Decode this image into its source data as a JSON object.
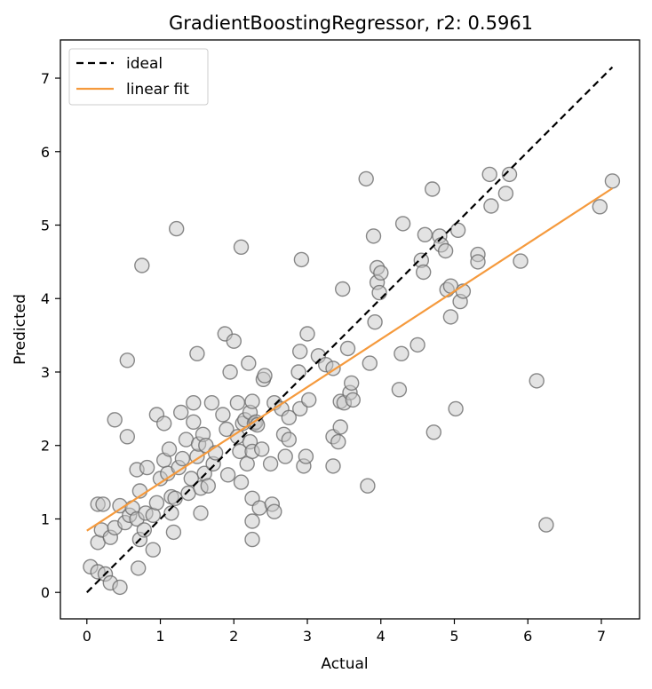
{
  "chart_data": {
    "type": "scatter",
    "title": "GradientBoostingRegressor, r2: 0.5961",
    "xlabel": "Actual",
    "ylabel": "Predicted",
    "xlim": [
      -0.36,
      7.52
    ],
    "ylim": [
      -0.36,
      7.52
    ],
    "xticks": [
      0,
      1,
      2,
      3,
      4,
      5,
      6,
      7
    ],
    "yticks": [
      0,
      1,
      2,
      3,
      4,
      5,
      6,
      7
    ],
    "xtick_labels": [
      "0",
      "1",
      "2",
      "3",
      "4",
      "5",
      "6",
      "7"
    ],
    "ytick_labels": [
      "0",
      "1",
      "2",
      "3",
      "4",
      "5",
      "6",
      "7"
    ],
    "grid": false,
    "legend_position": "top-left",
    "legend": [
      {
        "key": "ideal",
        "label": "ideal"
      },
      {
        "key": "linear_fit",
        "label": "linear fit"
      }
    ],
    "ideal_line": {
      "x": [
        0,
        7.15
      ],
      "y": [
        0,
        7.15
      ],
      "color": "#000000",
      "style": "dashed"
    },
    "linear_fit": {
      "x": [
        0,
        7.15
      ],
      "y": [
        0.84,
        5.5
      ],
      "color": "#f59a3d"
    },
    "point_color": "#c8c8c8",
    "point_edge_color": "#6b6b6b",
    "points": [
      [
        0.05,
        0.35
      ],
      [
        0.15,
        0.28
      ],
      [
        0.25,
        0.25
      ],
      [
        0.32,
        0.13
      ],
      [
        0.45,
        0.07
      ],
      [
        0.15,
        0.68
      ],
      [
        0.2,
        0.85
      ],
      [
        0.15,
        1.2
      ],
      [
        0.22,
        1.2
      ],
      [
        0.32,
        0.75
      ],
      [
        0.38,
        0.88
      ],
      [
        0.45,
        1.18
      ],
      [
        0.52,
        0.95
      ],
      [
        0.58,
        1.05
      ],
      [
        0.62,
        1.15
      ],
      [
        0.55,
        2.12
      ],
      [
        0.38,
        2.35
      ],
      [
        0.68,
        1.67
      ],
      [
        0.72,
        1.38
      ],
      [
        0.68,
        1.0
      ],
      [
        0.72,
        0.72
      ],
      [
        0.7,
        0.33
      ],
      [
        0.78,
        0.85
      ],
      [
        0.8,
        1.08
      ],
      [
        0.82,
        1.7
      ],
      [
        0.9,
        1.05
      ],
      [
        0.9,
        0.58
      ],
      [
        0.95,
        1.22
      ],
      [
        0.95,
        2.42
      ],
      [
        1.0,
        1.55
      ],
      [
        1.05,
        2.3
      ],
      [
        1.05,
        1.8
      ],
      [
        1.1,
        1.62
      ],
      [
        1.12,
        1.95
      ],
      [
        1.15,
        1.3
      ],
      [
        1.15,
        1.08
      ],
      [
        1.18,
        0.82
      ],
      [
        1.2,
        1.28
      ],
      [
        1.25,
        1.7
      ],
      [
        1.28,
        2.45
      ],
      [
        1.3,
        1.82
      ],
      [
        1.35,
        2.08
      ],
      [
        1.38,
        1.35
      ],
      [
        1.42,
        1.55
      ],
      [
        1.45,
        2.58
      ],
      [
        1.45,
        2.32
      ],
      [
        1.5,
        3.25
      ],
      [
        1.5,
        1.85
      ],
      [
        1.52,
        2.02
      ],
      [
        1.55,
        1.42
      ],
      [
        1.55,
        1.08
      ],
      [
        1.58,
        2.15
      ],
      [
        1.6,
        1.62
      ],
      [
        1.62,
        2.0
      ],
      [
        1.65,
        1.45
      ],
      [
        1.7,
        2.58
      ],
      [
        1.72,
        1.75
      ],
      [
        1.75,
        1.9
      ],
      [
        1.85,
        2.42
      ],
      [
        1.88,
        3.52
      ],
      [
        1.9,
        2.22
      ],
      [
        1.92,
        1.6
      ],
      [
        1.95,
        3.0
      ],
      [
        2.0,
        3.42
      ],
      [
        2.05,
        2.58
      ],
      [
        2.05,
        2.12
      ],
      [
        2.08,
        1.92
      ],
      [
        2.1,
        1.5
      ],
      [
        2.1,
        4.7
      ],
      [
        2.12,
        2.3
      ],
      [
        2.15,
        2.35
      ],
      [
        2.18,
        1.75
      ],
      [
        2.2,
        3.12
      ],
      [
        2.22,
        2.45
      ],
      [
        2.22,
        2.05
      ],
      [
        2.25,
        1.92
      ],
      [
        2.25,
        2.6
      ],
      [
        2.25,
        1.28
      ],
      [
        2.25,
        0.97
      ],
      [
        2.25,
        0.72
      ],
      [
        2.28,
        2.3
      ],
      [
        2.3,
        2.32
      ],
      [
        2.32,
        2.28
      ],
      [
        2.35,
        1.15
      ],
      [
        2.38,
        1.95
      ],
      [
        2.4,
        2.9
      ],
      [
        2.42,
        2.95
      ],
      [
        2.5,
        1.75
      ],
      [
        2.52,
        1.2
      ],
      [
        2.55,
        1.1
      ],
      [
        2.55,
        2.58
      ],
      [
        2.65,
        2.5
      ],
      [
        2.68,
        2.15
      ],
      [
        2.7,
        1.85
      ],
      [
        2.75,
        2.38
      ],
      [
        2.75,
        2.08
      ],
      [
        2.88,
        3.0
      ],
      [
        2.9,
        3.28
      ],
      [
        2.9,
        2.5
      ],
      [
        2.92,
        4.53
      ],
      [
        2.95,
        1.72
      ],
      [
        2.98,
        1.85
      ],
      [
        3.0,
        3.52
      ],
      [
        3.02,
        2.62
      ],
      [
        3.15,
        3.22
      ],
      [
        3.25,
        3.1
      ],
      [
        3.35,
        3.05
      ],
      [
        3.35,
        2.12
      ],
      [
        3.35,
        1.72
      ],
      [
        3.42,
        2.05
      ],
      [
        3.45,
        2.6
      ],
      [
        3.45,
        2.25
      ],
      [
        3.48,
        4.13
      ],
      [
        3.5,
        2.58
      ],
      [
        3.55,
        3.32
      ],
      [
        3.58,
        2.72
      ],
      [
        3.6,
        2.85
      ],
      [
        3.62,
        2.62
      ],
      [
        3.8,
        5.63
      ],
      [
        3.82,
        1.45
      ],
      [
        3.85,
        3.12
      ],
      [
        3.9,
        4.85
      ],
      [
        3.92,
        3.68
      ],
      [
        3.95,
        4.42
      ],
      [
        3.95,
        4.22
      ],
      [
        3.98,
        4.08
      ],
      [
        4.0,
        4.35
      ],
      [
        4.25,
        2.76
      ],
      [
        4.28,
        3.25
      ],
      [
        4.3,
        5.02
      ],
      [
        4.5,
        3.37
      ],
      [
        4.55,
        4.52
      ],
      [
        4.58,
        4.36
      ],
      [
        4.6,
        4.87
      ],
      [
        4.7,
        5.49
      ],
      [
        4.72,
        2.18
      ],
      [
        4.8,
        4.85
      ],
      [
        4.82,
        4.73
      ],
      [
        4.88,
        4.65
      ],
      [
        4.9,
        4.12
      ],
      [
        4.95,
        4.17
      ],
      [
        4.95,
        3.75
      ],
      [
        5.02,
        2.5
      ],
      [
        5.05,
        4.93
      ],
      [
        5.08,
        3.96
      ],
      [
        5.12,
        4.1
      ],
      [
        5.32,
        4.6
      ],
      [
        5.32,
        4.5
      ],
      [
        5.48,
        5.69
      ],
      [
        5.5,
        5.26
      ],
      [
        5.7,
        5.43
      ],
      [
        5.75,
        5.69
      ],
      [
        5.9,
        4.51
      ],
      [
        6.12,
        2.88
      ],
      [
        6.25,
        0.92
      ],
      [
        6.98,
        5.25
      ],
      [
        7.15,
        5.6
      ],
      [
        0.75,
        4.45
      ],
      [
        1.22,
        4.95
      ],
      [
        0.55,
        3.16
      ]
    ]
  }
}
